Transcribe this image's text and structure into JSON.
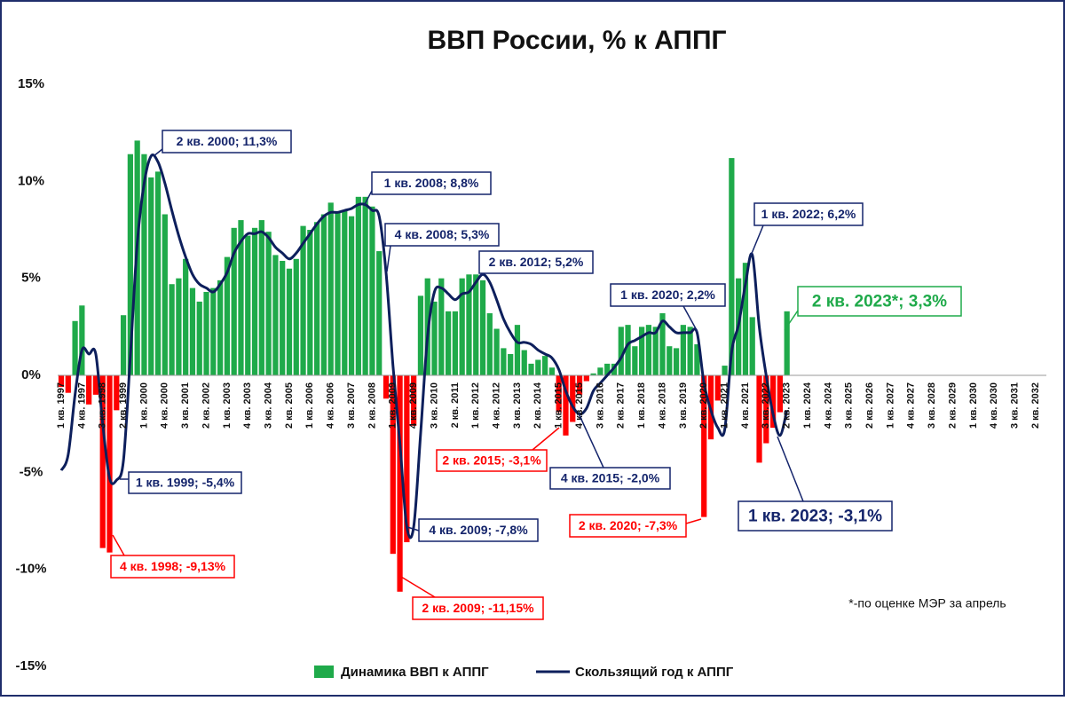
{
  "chart_data": {
    "type": "bar_line",
    "title": "ВВП России, % к АППГ",
    "note": "*-по оценке МЭР за апрель",
    "ylim": [
      -15,
      15
    ],
    "yticks": [
      {
        "value": 15,
        "label": "15%"
      },
      {
        "value": 10,
        "label": "10%"
      },
      {
        "value": 5,
        "label": "5%"
      },
      {
        "value": 0,
        "label": "0%"
      },
      {
        "value": -5,
        "label": "-5%"
      },
      {
        "value": -10,
        "label": "-10%"
      },
      {
        "value": -15,
        "label": "-15%"
      }
    ],
    "categories": [
      "1 кв. 1997",
      null,
      null,
      "4 кв. 1997",
      null,
      null,
      "3 кв. 1998",
      null,
      null,
      "2 кв. 1999",
      null,
      null,
      "1 кв. 2000",
      null,
      null,
      "4 кв. 2000",
      null,
      null,
      "3 кв. 2001",
      null,
      null,
      "2 кв. 2002",
      null,
      null,
      "1 кв. 2003",
      null,
      null,
      "4 кв. 2003",
      null,
      null,
      "3 кв. 2004",
      null,
      null,
      "2 кв. 2005",
      null,
      null,
      "1 кв. 2006",
      null,
      null,
      "4 кв. 2006",
      null,
      null,
      "3 кв. 2007",
      null,
      null,
      "2 кв. 2008",
      null,
      null,
      "1 кв. 2009",
      null,
      null,
      "4 кв. 2009",
      null,
      null,
      "3 кв. 2010",
      null,
      null,
      "2 кв. 2011",
      null,
      null,
      "1 кв. 2012",
      null,
      null,
      "4 кв. 2012",
      null,
      null,
      "3 кв. 2013",
      null,
      null,
      "2 кв. 2014",
      null,
      null,
      "1 кв. 2015",
      null,
      null,
      "4 кв. 2015",
      null,
      null,
      "3 кв. 2016",
      null,
      null,
      "2 кв. 2017",
      null,
      null,
      "1 кв. 2018",
      null,
      null,
      "4 кв. 2018",
      null,
      null,
      "3 кв. 2019",
      null,
      null,
      "2 кв. 2020",
      null,
      null,
      "1 кв. 2021",
      null,
      null,
      "4 кв. 2021",
      null,
      null,
      "3 кв. 2022",
      null,
      null,
      "2 кв. 2023",
      null,
      null,
      "1 кв. 2024",
      null,
      null,
      "4 кв. 2024",
      null,
      null,
      "3 кв. 2025",
      null,
      null,
      "2 кв. 2026",
      null,
      null,
      "1 кв. 2027",
      null,
      null,
      "4 кв. 2027",
      null,
      null,
      "3 кв. 2028",
      null,
      null,
      "2 кв. 2029",
      null,
      null,
      "1 кв. 2030",
      null,
      null,
      "4 кв. 2030",
      null,
      null,
      "3 кв. 2031",
      null,
      null,
      "2 кв. 2032"
    ],
    "series": [
      {
        "name": "Динамика ВВП к АППГ",
        "kind": "bar",
        "color": "#1faa4a",
        "negative_color": "#ff0000",
        "values": [
          -0.6,
          -0.9,
          2.8,
          3.6,
          -1.5,
          -1.0,
          -8.9,
          -9.13,
          -1.8,
          3.1,
          11.4,
          12.1,
          11.4,
          10.2,
          10.5,
          8.3,
          4.7,
          5.0,
          6.0,
          4.5,
          3.8,
          4.3,
          4.5,
          4.9,
          6.1,
          7.6,
          8.0,
          7.2,
          7.6,
          8.0,
          7.4,
          6.2,
          5.9,
          5.5,
          6.0,
          7.7,
          7.5,
          7.9,
          8.3,
          8.9,
          8.4,
          8.5,
          8.2,
          9.2,
          9.2,
          8.7,
          6.4,
          -1.2,
          -9.2,
          -11.15,
          -8.6,
          -2.6,
          4.1,
          5.0,
          3.8,
          5.0,
          3.3,
          3.3,
          5.0,
          5.2,
          5.2,
          4.9,
          3.2,
          2.4,
          1.4,
          1.1,
          2.6,
          1.3,
          0.6,
          0.8,
          1.0,
          0.4,
          -1.9,
          -3.1,
          -2.4,
          -1.0,
          -0.3,
          0.1,
          0.4,
          0.6,
          0.6,
          2.5,
          2.6,
          1.5,
          2.5,
          2.6,
          2.5,
          3.2,
          1.5,
          1.4,
          2.6,
          2.5,
          1.6,
          -7.3,
          -3.3,
          -1.3,
          0.5,
          11.2,
          5.0,
          5.8,
          3.0,
          -4.5,
          -3.5,
          -2.7,
          -1.9,
          3.3,
          null,
          null,
          null,
          null,
          null,
          null,
          null,
          null,
          null,
          null,
          null,
          null,
          null,
          null,
          null,
          null,
          null,
          null,
          null,
          null,
          null,
          null,
          null,
          null,
          null,
          null,
          null,
          null,
          null,
          null,
          null,
          null,
          null,
          null,
          null,
          null
        ]
      },
      {
        "name": "Скользящий год к АППГ",
        "kind": "line",
        "color": "#0d1f5c",
        "values": [
          -4.9,
          -4.1,
          -1.0,
          1.3,
          1.1,
          1.1,
          -2.5,
          -5.3,
          -5.4,
          -4.4,
          1.0,
          6.8,
          9.9,
          11.3,
          11.0,
          9.9,
          8.5,
          7.2,
          6.1,
          5.2,
          4.7,
          4.5,
          4.3,
          4.7,
          5.3,
          6.3,
          6.9,
          7.3,
          7.3,
          7.4,
          7.1,
          6.6,
          6.3,
          6.0,
          6.3,
          6.8,
          7.3,
          7.8,
          8.2,
          8.4,
          8.4,
          8.5,
          8.6,
          8.8,
          8.8,
          8.5,
          8.2,
          5.3,
          0.5,
          -3.5,
          -7.8,
          -7.8,
          -3.0,
          2.0,
          4.3,
          4.5,
          4.2,
          3.9,
          4.2,
          4.3,
          4.8,
          5.2,
          4.8,
          3.9,
          2.9,
          2.2,
          1.7,
          1.7,
          1.6,
          1.3,
          1.1,
          0.9,
          0.3,
          -0.8,
          -1.6,
          -2.0,
          -1.7,
          -0.8,
          -0.4,
          0.0,
          0.4,
          0.9,
          1.6,
          1.8,
          2.0,
          2.2,
          2.2,
          2.8,
          2.5,
          2.2,
          2.2,
          2.2,
          2.2,
          -0.4,
          -1.8,
          -2.7,
          -2.8,
          1.2,
          2.6,
          4.7,
          6.2,
          2.5,
          0.0,
          -2.0,
          -3.1,
          -1.8,
          null,
          null,
          null,
          null,
          null,
          null,
          null,
          null,
          null,
          null,
          null,
          null,
          null,
          null,
          null,
          null,
          null,
          null,
          null,
          null,
          null,
          null,
          null,
          null,
          null,
          null,
          null,
          null,
          null,
          null,
          null,
          null,
          null,
          null,
          null,
          null
        ]
      }
    ],
    "annotations": [
      {
        "text": "2 кв. 2000; 11,3%",
        "color": "#14246b"
      },
      {
        "text": "1 кв. 2008; 8,8%",
        "color": "#14246b"
      },
      {
        "text": "4 кв. 2008; 5,3%",
        "color": "#14246b"
      },
      {
        "text": "2 кв. 2012; 5,2%",
        "color": "#14246b"
      },
      {
        "text": "1 кв. 2020; 2,2%",
        "color": "#14246b"
      },
      {
        "text": "1 кв. 2022; 6,2%",
        "color": "#14246b"
      },
      {
        "text": "2 кв. 2023*; 3,3%",
        "color": "#1faa4a"
      },
      {
        "text": "1 кв. 1999; -5,4%",
        "color": "#14246b"
      },
      {
        "text": "4 кв. 1998; -9,13%",
        "color": "#ff0000"
      },
      {
        "text": "2 кв. 2015; -3,1%",
        "color": "#ff0000"
      },
      {
        "text": "4 кв. 2015; -2,0%",
        "color": "#14246b"
      },
      {
        "text": "4 кв. 2009; -7,8%",
        "color": "#14246b"
      },
      {
        "text": "2 кв. 2020; -7,3%",
        "color": "#ff0000"
      },
      {
        "text": "1 кв. 2023; -3,1%",
        "color": "#14246b"
      },
      {
        "text": "2 кв. 2009; -11,15%",
        "color": "#ff0000"
      }
    ]
  }
}
